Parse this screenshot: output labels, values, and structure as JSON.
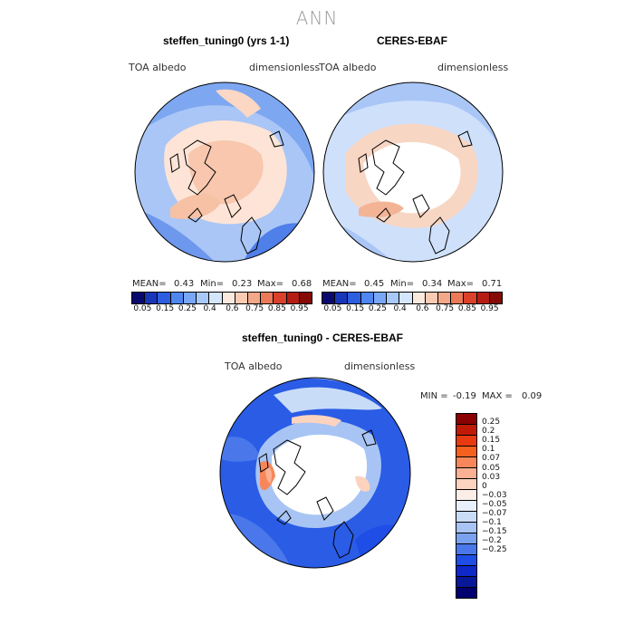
{
  "main_title": "ANN",
  "panels": [
    {
      "title": "steffen_tuning0 (yrs 1-1)",
      "var_label": "TOA  albedo",
      "units": "dimensionless",
      "stats": {
        "mean_label": "MEAN=",
        "mean": "0.43",
        "min_label": "Min=",
        "min": "0.23",
        "max_label": "Max=",
        "max": "0.68"
      }
    },
    {
      "title": "CERES-EBAF",
      "var_label": "TOA  albedo",
      "units": "dimensionless",
      "stats": {
        "mean_label": "MEAN=",
        "mean": "0.45",
        "min_label": "Min=",
        "min": "0.34",
        "max_label": "Max=",
        "max": "0.71"
      }
    }
  ],
  "colorbar_ticks": [
    "0.05",
    "0.15",
    "0.25",
    "0.4",
    "0.6",
    "0.75",
    "0.85",
    "0.95"
  ],
  "colorbar_colors": [
    "#0a0a6e",
    "#1836b8",
    "#2d5ee0",
    "#4f86f0",
    "#7aa7f5",
    "#a8c8f8",
    "#d4e6fb",
    "#fbe9de",
    "#f8cbb2",
    "#f3a88a",
    "#ea7a58",
    "#d9412a",
    "#b51d12",
    "#860a05"
  ],
  "diff": {
    "title": "steffen_tuning0 - CERES-EBAF",
    "var_label": "TOA  albedo",
    "units": "dimensionless",
    "stats": {
      "min_label": "MIN =",
      "min": "-0.19",
      "max_label": "MAX =",
      "max": "0.09"
    },
    "ticks": [
      "0.25",
      "0.2",
      "0.15",
      "0.1",
      "0.07",
      "0.05",
      "0.03",
      "0",
      "−0.03",
      "−0.05",
      "−0.07",
      "−0.1",
      "−0.15",
      "−0.2",
      "−0.25"
    ],
    "colors": [
      "#8b0000",
      "#c01a05",
      "#e83a10",
      "#f5601e",
      "#f7875a",
      "#fab092",
      "#fcd3bf",
      "#fbeee6",
      "#e8f0fb",
      "#c9dcf7",
      "#a7c4f4",
      "#7aa2ef",
      "#4a78ea",
      "#1f4ee6",
      "#0f28c8",
      "#081898",
      "#000070"
    ]
  },
  "palette": {
    "cold": "#3366e8",
    "warm": "#f6c9b0",
    "pale": "#cfe0fb"
  }
}
